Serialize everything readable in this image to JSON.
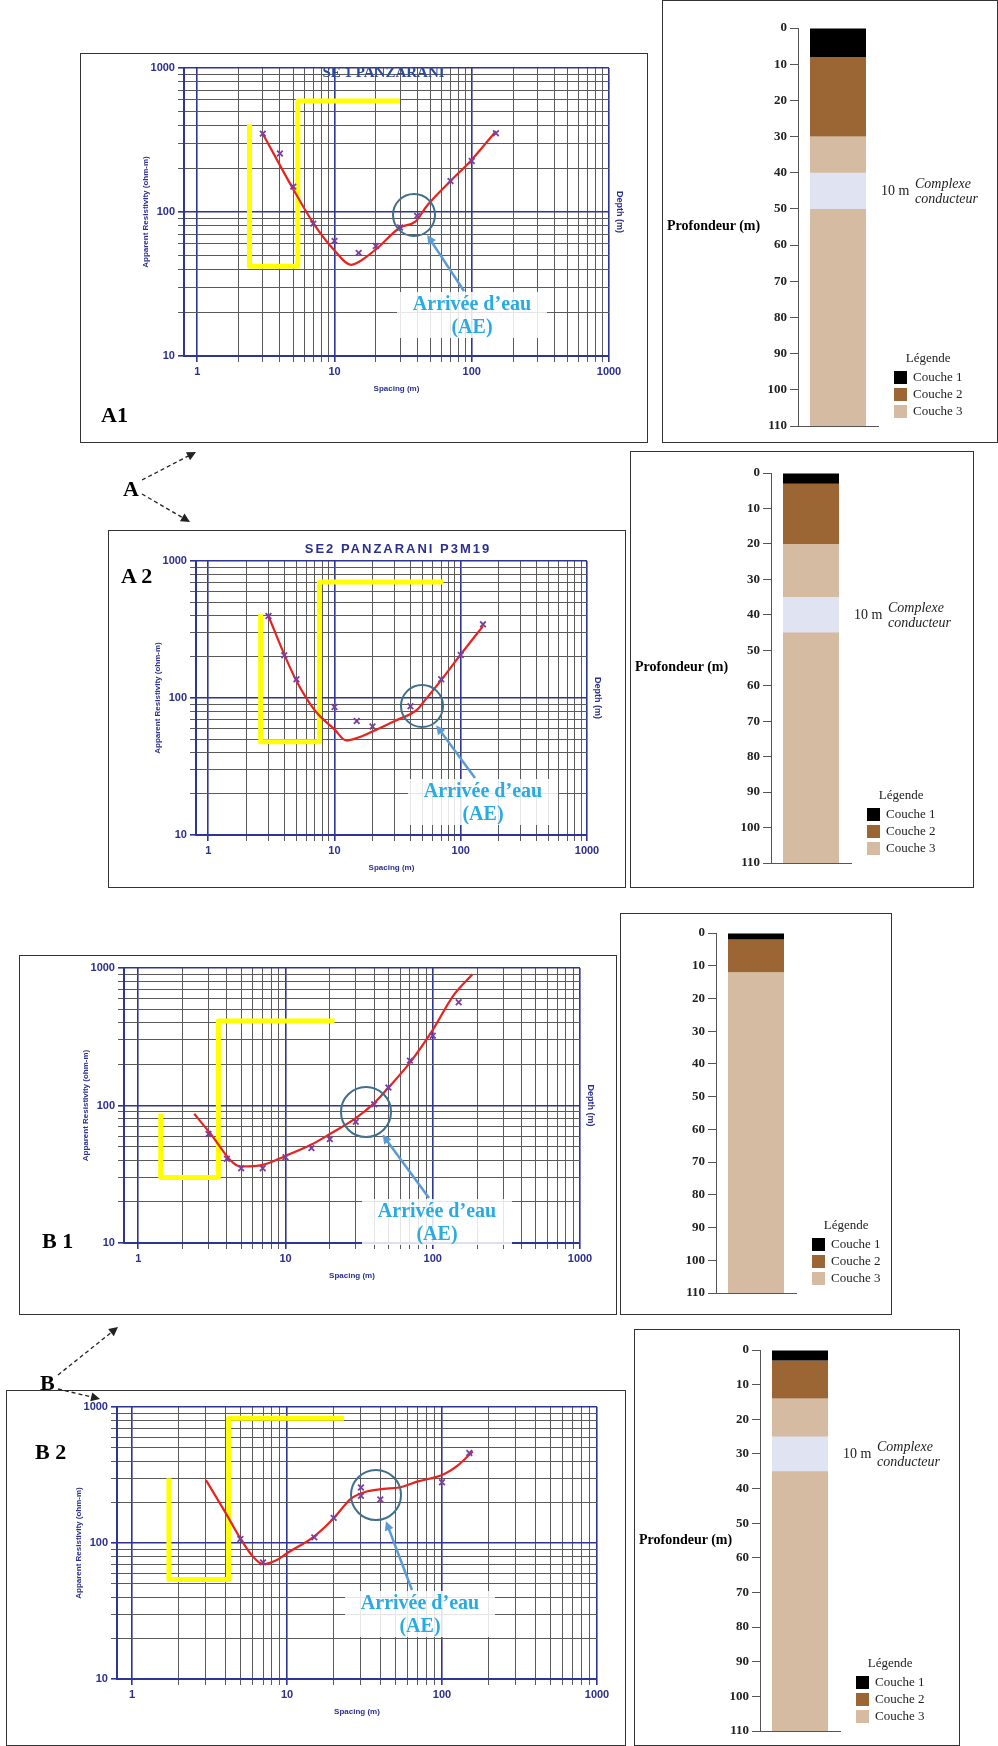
{
  "chart_data": [
    {
      "type": "line",
      "title": "SE 1 PANZARANI",
      "xlabel": "Spacing (m)",
      "ylabel": "Apparent Resistivity (ohm-m)",
      "y2label": "Depth (m)",
      "log": "xy",
      "grid": true,
      "xlim": [
        0.8,
        1000
      ],
      "ylim": [
        10,
        1000
      ],
      "xticks": [
        1,
        {
          "value": 2,
          "label": null
        },
        {
          "value": 3,
          "label": null
        },
        {
          "value": 4,
          "label": null
        },
        {
          "value": 5,
          "label": null
        },
        {
          "value": 6,
          "label": null
        },
        {
          "value": 7,
          "label": null
        },
        {
          "value": 8,
          "label": null
        },
        {
          "value": 9,
          "label": null
        },
        10,
        {
          "value": 20,
          "label": null
        },
        {
          "value": 30,
          "label": null
        },
        {
          "value": 40,
          "label": null
        },
        {
          "value": 50,
          "label": null
        },
        {
          "value": 60,
          "label": null
        },
        {
          "value": 70,
          "label": null
        },
        {
          "value": 80,
          "label": null
        },
        {
          "value": 90,
          "label": null
        },
        100,
        {
          "value": 200,
          "label": null
        },
        {
          "value": 300,
          "label": null
        },
        {
          "value": 400,
          "label": null
        },
        {
          "value": 500,
          "label": null
        },
        {
          "value": 600,
          "label": null
        },
        {
          "value": 700,
          "label": null
        },
        {
          "value": 800,
          "label": null
        },
        {
          "value": 900,
          "label": null
        },
        1000
      ],
      "yticks": [
        10,
        {
          "value": 20,
          "label": null
        },
        {
          "value": 30,
          "label": null
        },
        {
          "value": 40,
          "label": null
        },
        {
          "value": 50,
          "label": null
        },
        {
          "value": 60,
          "label": null
        },
        {
          "value": 70,
          "label": null
        },
        {
          "value": 80,
          "label": null
        },
        {
          "value": 90,
          "label": null
        },
        100,
        {
          "value": 200,
          "label": null
        },
        {
          "value": 300,
          "label": null
        },
        {
          "value": 400,
          "label": null
        },
        {
          "value": 500,
          "label": null
        },
        {
          "value": 600,
          "label": null
        },
        {
          "value": 700,
          "label": null
        },
        {
          "value": 800,
          "label": null
        },
        {
          "value": 900,
          "label": null
        },
        1000
      ],
      "annotations": [
        "A1",
        "A",
        "Arrivée d’eau (AE)"
      ],
      "series": [
        {
          "type": "scatter",
          "marker": "cross",
          "color": "#7a3e9d",
          "x": [
            3,
            4,
            5,
            7,
            10,
            15,
            20,
            30,
            40,
            70,
            100,
            150
          ],
          "values": [
            350,
            255,
            150,
            83,
            63,
            52,
            58,
            78,
            94,
            164,
            226,
            352
          ]
        },
        {
          "type": "line",
          "color": "#e8231f",
          "x": [
            3,
            5,
            7.1,
            10,
            13.2,
            15,
            20,
            30,
            39,
            47,
            70,
            100,
            150
          ],
          "values": [
            350,
            144,
            82,
            54,
            43,
            45,
            55,
            78,
            86,
            110,
            164,
            231,
            364
          ]
        },
        {
          "type": "step",
          "color": "#ffff00",
          "x": [
            2.4,
            5.4,
            14.5,
            30
          ],
          "values": [
            406,
            42,
            590,
            590
          ]
        }
      ]
    },
    {
      "type": "bar",
      "stacked": true,
      "ylabel": "Profondeur (m)",
      "legend": "bottom right",
      "legend_title": "Légende",
      "categories": [
        null
      ],
      "ylim": [
        110,
        0
      ],
      "yticks": [
        0,
        10,
        20,
        30,
        40,
        50,
        60,
        70,
        80,
        90,
        100,
        110
      ],
      "bands": [
        {
          "axis": "y",
          "from": 40,
          "to": 50,
          "color": "#dfe3f2"
        }
      ],
      "annotations": [
        "10 m",
        "Complexe conducteur"
      ],
      "series": [
        {
          "name": "Couche 1",
          "color": "#000000",
          "values": [
            8
          ]
        },
        {
          "name": "Couche 2",
          "color": "#9b6634",
          "values": [
            22
          ]
        },
        {
          "name": "Couche 3",
          "color": "#d4bba1",
          "values": [
            80
          ]
        }
      ]
    },
    {
      "type": "line",
      "title": "SE2 PANZARANI P3M19",
      "xlabel": "Spacing (m)",
      "ylabel": "Apparent Resistivity (ohm-m)",
      "y2label": "Depth (m)",
      "log": "xy",
      "grid": true,
      "xlim": [
        0.8,
        1000
      ],
      "ylim": [
        10,
        1000
      ],
      "xticks": [
        1,
        {
          "value": 2,
          "label": null
        },
        {
          "value": 3,
          "label": null
        },
        {
          "value": 4,
          "label": null
        },
        {
          "value": 5,
          "label": null
        },
        {
          "value": 6,
          "label": null
        },
        {
          "value": 7,
          "label": null
        },
        {
          "value": 8,
          "label": null
        },
        {
          "value": 9,
          "label": null
        },
        10,
        {
          "value": 20,
          "label": null
        },
        {
          "value": 30,
          "label": null
        },
        {
          "value": 40,
          "label": null
        },
        {
          "value": 50,
          "label": null
        },
        {
          "value": 60,
          "label": null
        },
        {
          "value": 70,
          "label": null
        },
        {
          "value": 80,
          "label": null
        },
        {
          "value": 90,
          "label": null
        },
        100,
        {
          "value": 200,
          "label": null
        },
        {
          "value": 300,
          "label": null
        },
        {
          "value": 400,
          "label": null
        },
        {
          "value": 500,
          "label": null
        },
        {
          "value": 600,
          "label": null
        },
        {
          "value": 700,
          "label": null
        },
        {
          "value": 800,
          "label": null
        },
        {
          "value": 900,
          "label": null
        },
        1000
      ],
      "yticks": [
        10,
        {
          "value": 20,
          "label": null
        },
        {
          "value": 30,
          "label": null
        },
        {
          "value": 40,
          "label": null
        },
        {
          "value": 50,
          "label": null
        },
        {
          "value": 60,
          "label": null
        },
        {
          "value": 70,
          "label": null
        },
        {
          "value": 80,
          "label": null
        },
        {
          "value": 90,
          "label": null
        },
        100,
        {
          "value": 200,
          "label": null
        },
        {
          "value": 300,
          "label": null
        },
        {
          "value": 400,
          "label": null
        },
        {
          "value": 500,
          "label": null
        },
        {
          "value": 600,
          "label": null
        },
        {
          "value": 700,
          "label": null
        },
        {
          "value": 800,
          "label": null
        },
        {
          "value": 900,
          "label": null
        },
        1000
      ],
      "annotations": [
        "A 2",
        "Arrivée d’eau (AE)"
      ],
      "series": [
        {
          "type": "scatter",
          "marker": "cross",
          "color": "#7a3e9d",
          "x": [
            3,
            4,
            5,
            10,
            15,
            20,
            40,
            70,
            100,
            150
          ],
          "values": [
            397,
            205,
            137,
            86,
            68,
            62,
            87,
            137,
            206,
            345
          ]
        },
        {
          "type": "line",
          "color": "#e8231f",
          "x": [
            3,
            4,
            5,
            7,
            10,
            12.4,
            15,
            20,
            30,
            45.7,
            50,
            70,
            100,
            150
          ],
          "values": [
            397,
            208,
            133,
            81,
            59,
            49,
            51,
            57,
            68,
            83,
            92,
            135,
            208,
            335
          ]
        },
        {
          "type": "step",
          "color": "#ffff00",
          "x": [
            2.6,
            7.6,
            30,
            73
          ],
          "values": [
            408,
            48,
            703,
            703
          ]
        }
      ]
    },
    {
      "type": "bar",
      "stacked": true,
      "ylabel": "Profondeur (m)",
      "legend": "bottom right",
      "legend_title": "Légende",
      "categories": [
        null
      ],
      "ylim": [
        110,
        0
      ],
      "yticks": [
        0,
        10,
        20,
        30,
        40,
        50,
        60,
        70,
        80,
        90,
        100,
        110
      ],
      "bands": [
        {
          "axis": "y",
          "from": 35,
          "to": 45,
          "color": "#dfe3f2"
        }
      ],
      "annotations": [
        "10 m",
        "Complexe conducteur"
      ],
      "series": [
        {
          "name": "Couche 1",
          "color": "#000000",
          "values": [
            3
          ]
        },
        {
          "name": "Couche 2",
          "color": "#9b6634",
          "values": [
            17
          ]
        },
        {
          "name": "Couche 3",
          "color": "#d4bba1",
          "values": [
            90
          ]
        }
      ]
    },
    {
      "type": "line",
      "xlabel": "Spacing (m)",
      "ylabel": "Apparent Resistivity (ohm-m)",
      "y2label": "Depth (m)",
      "log": "xy",
      "grid": true,
      "xlim": [
        0.8,
        1000
      ],
      "ylim": [
        10,
        1000
      ],
      "xticks": [
        1,
        {
          "value": 2,
          "label": null
        },
        {
          "value": 3,
          "label": null
        },
        {
          "value": 4,
          "label": null
        },
        {
          "value": 5,
          "label": null
        },
        {
          "value": 6,
          "label": null
        },
        {
          "value": 7,
          "label": null
        },
        {
          "value": 8,
          "label": null
        },
        {
          "value": 9,
          "label": null
        },
        10,
        {
          "value": 20,
          "label": null
        },
        {
          "value": 30,
          "label": null
        },
        {
          "value": 40,
          "label": null
        },
        {
          "value": 50,
          "label": null
        },
        {
          "value": 60,
          "label": null
        },
        {
          "value": 70,
          "label": null
        },
        {
          "value": 80,
          "label": null
        },
        {
          "value": 90,
          "label": null
        },
        100,
        {
          "value": 200,
          "label": null
        },
        {
          "value": 300,
          "label": null
        },
        {
          "value": 400,
          "label": null
        },
        {
          "value": 500,
          "label": null
        },
        {
          "value": 600,
          "label": null
        },
        {
          "value": 700,
          "label": null
        },
        {
          "value": 800,
          "label": null
        },
        {
          "value": 900,
          "label": null
        },
        1000
      ],
      "yticks": [
        10,
        {
          "value": 20,
          "label": null
        },
        {
          "value": 30,
          "label": null
        },
        {
          "value": 40,
          "label": null
        },
        {
          "value": 50,
          "label": null
        },
        {
          "value": 60,
          "label": null
        },
        {
          "value": 70,
          "label": null
        },
        {
          "value": 80,
          "label": null
        },
        {
          "value": 90,
          "label": null
        },
        100,
        {
          "value": 200,
          "label": null
        },
        {
          "value": 300,
          "label": null
        },
        {
          "value": 400,
          "label": null
        },
        {
          "value": 500,
          "label": null
        },
        {
          "value": 600,
          "label": null
        },
        {
          "value": 700,
          "label": null
        },
        {
          "value": 800,
          "label": null
        },
        {
          "value": 900,
          "label": null
        },
        1000
      ],
      "annotations": [
        "B 1",
        "B",
        "Arrivée d’eau (AE)"
      ],
      "series": [
        {
          "type": "scatter",
          "marker": "cross",
          "color": "#7a3e9d",
          "x": [
            3,
            4,
            5,
            7,
            10,
            15,
            20,
            30,
            40,
            50,
            70,
            100,
            150
          ],
          "values": [
            62,
            41,
            35,
            35,
            42,
            49,
            57,
            76,
            102,
            135,
            212,
            322,
            563
          ]
        },
        {
          "type": "line",
          "color": "#e8231f",
          "x": [
            2.4,
            3,
            5,
            7,
            10,
            15,
            20,
            30,
            40,
            50,
            70,
            100,
            138,
            186
          ],
          "values": [
            87,
            65,
            36,
            37,
            43,
            52,
            62,
            81,
            104,
            135,
            205,
            355,
            630,
            900
          ]
        },
        {
          "type": "step",
          "color": "#ffff00",
          "x": [
            1.42,
            3.5,
            8.5,
            21.5
          ],
          "values": [
            87,
            30,
            412,
            412
          ]
        }
      ]
    },
    {
      "type": "bar",
      "stacked": true,
      "legend": "bottom right",
      "legend_title": "Légende",
      "categories": [
        null
      ],
      "ylim": [
        110,
        0
      ],
      "yticks": [
        0,
        10,
        20,
        30,
        40,
        50,
        60,
        70,
        80,
        90,
        100,
        110
      ],
      "series": [
        {
          "name": "Couche 1",
          "color": "#000000",
          "values": [
            2
          ]
        },
        {
          "name": "Couche 2",
          "color": "#9b6634",
          "values": [
            10
          ]
        },
        {
          "name": "Couche 3",
          "color": "#d4bba1",
          "values": [
            98
          ]
        }
      ]
    },
    {
      "type": "line",
      "xlabel": "Spacing (m)",
      "ylabel": "Apparent Resistivity (ohm-m)",
      "log": "xy",
      "grid": true,
      "xlim": [
        0.8,
        1000
      ],
      "ylim": [
        10,
        1000
      ],
      "xticks": [
        1,
        {
          "value": 2,
          "label": null
        },
        {
          "value": 3,
          "label": null
        },
        {
          "value": 4,
          "label": null
        },
        {
          "value": 5,
          "label": null
        },
        {
          "value": 6,
          "label": null
        },
        {
          "value": 7,
          "label": null
        },
        {
          "value": 8,
          "label": null
        },
        {
          "value": 9,
          "label": null
        },
        10,
        {
          "value": 20,
          "label": null
        },
        {
          "value": 30,
          "label": null
        },
        {
          "value": 40,
          "label": null
        },
        {
          "value": 50,
          "label": null
        },
        {
          "value": 60,
          "label": null
        },
        {
          "value": 70,
          "label": null
        },
        {
          "value": 80,
          "label": null
        },
        {
          "value": 90,
          "label": null
        },
        100,
        {
          "value": 200,
          "label": null
        },
        {
          "value": 300,
          "label": null
        },
        {
          "value": 400,
          "label": null
        },
        {
          "value": 500,
          "label": null
        },
        {
          "value": 600,
          "label": null
        },
        {
          "value": 700,
          "label": null
        },
        {
          "value": 800,
          "label": null
        },
        {
          "value": 900,
          "label": null
        },
        1000
      ],
      "yticks": [
        10,
        {
          "value": 20,
          "label": null
        },
        {
          "value": 30,
          "label": null
        },
        {
          "value": 40,
          "label": null
        },
        {
          "value": 50,
          "label": null
        },
        {
          "value": 60,
          "label": null
        },
        {
          "value": 70,
          "label": null
        },
        {
          "value": 80,
          "label": null
        },
        {
          "value": 90,
          "label": null
        },
        100,
        {
          "value": 200,
          "label": null
        },
        {
          "value": 300,
          "label": null
        },
        {
          "value": 400,
          "label": null
        },
        {
          "value": 500,
          "label": null
        },
        {
          "value": 600,
          "label": null
        },
        {
          "value": 700,
          "label": null
        },
        {
          "value": 800,
          "label": null
        },
        {
          "value": 900,
          "label": null
        },
        1000
      ],
      "annotations": [
        "B 2",
        "Arrivée d’eau (AE)"
      ],
      "series": [
        {
          "type": "scatter",
          "marker": "cross",
          "color": "#7a3e9d",
          "x": [
            5,
            7,
            15,
            20,
            30,
            30,
            40,
            100,
            150
          ],
          "values": [
            107,
            72,
            110,
            153,
            256,
            222,
            209,
            280,
            459
          ]
        },
        {
          "type": "line",
          "color": "#e8231f",
          "x": [
            3,
            4,
            5,
            6,
            7,
            8.6,
            10,
            15,
            20,
            26,
            33,
            42,
            53,
            70,
            100,
            129,
            158
          ],
          "values": [
            290,
            168,
            108,
            80,
            70,
            75,
            84,
            112,
            152,
            213,
            240,
            250,
            256,
            284,
            316,
            379,
            472
          ]
        },
        {
          "type": "step",
          "color": "#ffff00",
          "x": [
            1.73,
            4.2,
            10.2,
            23.3
          ],
          "values": [
            299,
            54,
            828,
            828
          ]
        }
      ]
    },
    {
      "type": "bar",
      "stacked": true,
      "ylabel": "Profondeur (m)",
      "legend": "bottom right",
      "legend_title": "Légende",
      "categories": [
        null
      ],
      "ylim": [
        110,
        0
      ],
      "yticks": [
        0,
        10,
        20,
        30,
        40,
        50,
        60,
        70,
        80,
        90,
        100,
        110
      ],
      "bands": [
        {
          "axis": "y",
          "from": 25,
          "to": 35,
          "color": "#dfe3f2"
        }
      ],
      "annotations": [
        "10 m",
        "Complexe conducteur"
      ],
      "series": [
        {
          "name": "Couche 1",
          "color": "#000000",
          "values": [
            3
          ]
        },
        {
          "name": "Couche 2",
          "color": "#9b6634",
          "values": [
            11
          ]
        },
        {
          "name": "Couche 3",
          "color": "#d4bba1",
          "values": [
            96
          ]
        }
      ]
    }
  ]
}
